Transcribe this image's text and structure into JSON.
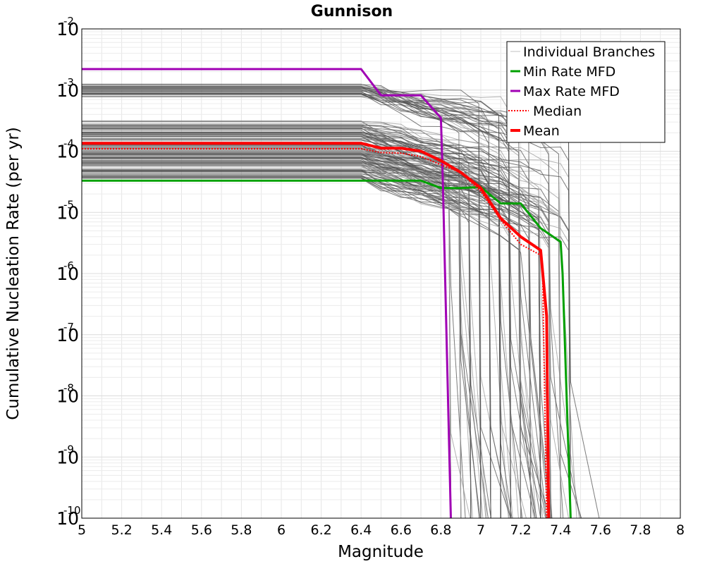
{
  "chart_data": {
    "type": "line",
    "title": "Gunnison",
    "xlabel": "Magnitude",
    "ylabel": "Cumulative Nucleation Rate (per yr)",
    "xlim": [
      5,
      8
    ],
    "ylim": [
      1e-10,
      0.01
    ],
    "yscale": "log",
    "grid": true,
    "legend_position": "top-right",
    "x_ticks": [
      "5",
      "5.2",
      "5.4",
      "5.6",
      "5.8",
      "6",
      "6.2",
      "6.4",
      "6.6",
      "6.8",
      "7",
      "7.2",
      "7.4",
      "7.6",
      "7.8",
      "8"
    ],
    "y_ticks": [
      {
        "base": "10",
        "exp": "-10",
        "value": 1e-10
      },
      {
        "base": "10",
        "exp": "-9",
        "value": 1e-09
      },
      {
        "base": "10",
        "exp": "-8",
        "value": 1e-08
      },
      {
        "base": "10",
        "exp": "-7",
        "value": 1e-07
      },
      {
        "base": "10",
        "exp": "-6",
        "value": 1e-06
      },
      {
        "base": "10",
        "exp": "-5",
        "value": 1e-05
      },
      {
        "base": "10",
        "exp": "-4",
        "value": 0.0001
      },
      {
        "base": "10",
        "exp": "-3",
        "value": 0.001
      },
      {
        "base": "10",
        "exp": "-2",
        "value": 0.01
      }
    ],
    "legend": [
      {
        "label": "Individual Branches",
        "color": "#c0c0c0",
        "style": "solid",
        "width": 1
      },
      {
        "label": "Min Rate MFD",
        "color": "#00a000",
        "style": "solid",
        "width": 3
      },
      {
        "label": "Max Rate MFD",
        "color": "#a000b4",
        "style": "solid",
        "width": 3
      },
      {
        "label": "Median",
        "color": "#ff0000",
        "style": "dotted",
        "width": 2
      },
      {
        "label": "Mean",
        "color": "#ff0000",
        "style": "solid",
        "width": 4
      }
    ],
    "series": [
      {
        "name": "Min Rate MFD",
        "color": "#00a000",
        "x": [
          5.0,
          6.4,
          6.5,
          6.6,
          6.7,
          6.8,
          6.9,
          7.0,
          7.1,
          7.2,
          7.3,
          7.4,
          7.41,
          7.45
        ],
        "y": [
          3.3e-05,
          3.3e-05,
          3.3e-05,
          3.3e-05,
          3.3e-05,
          2.5e-05,
          2.5e-05,
          2.6e-05,
          1.4e-05,
          1.4e-05,
          5.5e-06,
          3.3e-06,
          1e-06,
          1e-10
        ]
      },
      {
        "name": "Max Rate MFD",
        "color": "#a000b4",
        "x": [
          5.0,
          6.4,
          6.5,
          6.6,
          6.7,
          6.8,
          6.81,
          6.85
        ],
        "y": [
          0.0022,
          0.0022,
          0.00082,
          0.00082,
          0.00082,
          0.00035,
          3e-05,
          1e-10
        ]
      },
      {
        "name": "Median",
        "color": "#ff0000",
        "dotted": true,
        "x": [
          5.0,
          6.4,
          6.5,
          6.6,
          6.7,
          6.8,
          6.9,
          7.0,
          7.1,
          7.2,
          7.3,
          7.31,
          7.33
        ],
        "y": [
          0.00011,
          0.00011,
          9.5e-05,
          9.3e-05,
          8.2e-05,
          6e-05,
          4.5e-05,
          2.2e-05,
          7.5e-06,
          3e-06,
          2e-06,
          1e-06,
          1e-10
        ]
      },
      {
        "name": "Mean",
        "color": "#ff0000",
        "x": [
          5.0,
          6.4,
          6.5,
          6.6,
          6.7,
          6.8,
          6.9,
          7.0,
          7.1,
          7.2,
          7.3,
          7.33,
          7.34
        ],
        "y": [
          0.000135,
          0.000135,
          0.000112,
          0.000112,
          0.0001,
          7e-05,
          4.5e-05,
          2.5e-05,
          8e-06,
          4e-06,
          2.4e-06,
          2e-07,
          1e-10
        ]
      }
    ]
  }
}
